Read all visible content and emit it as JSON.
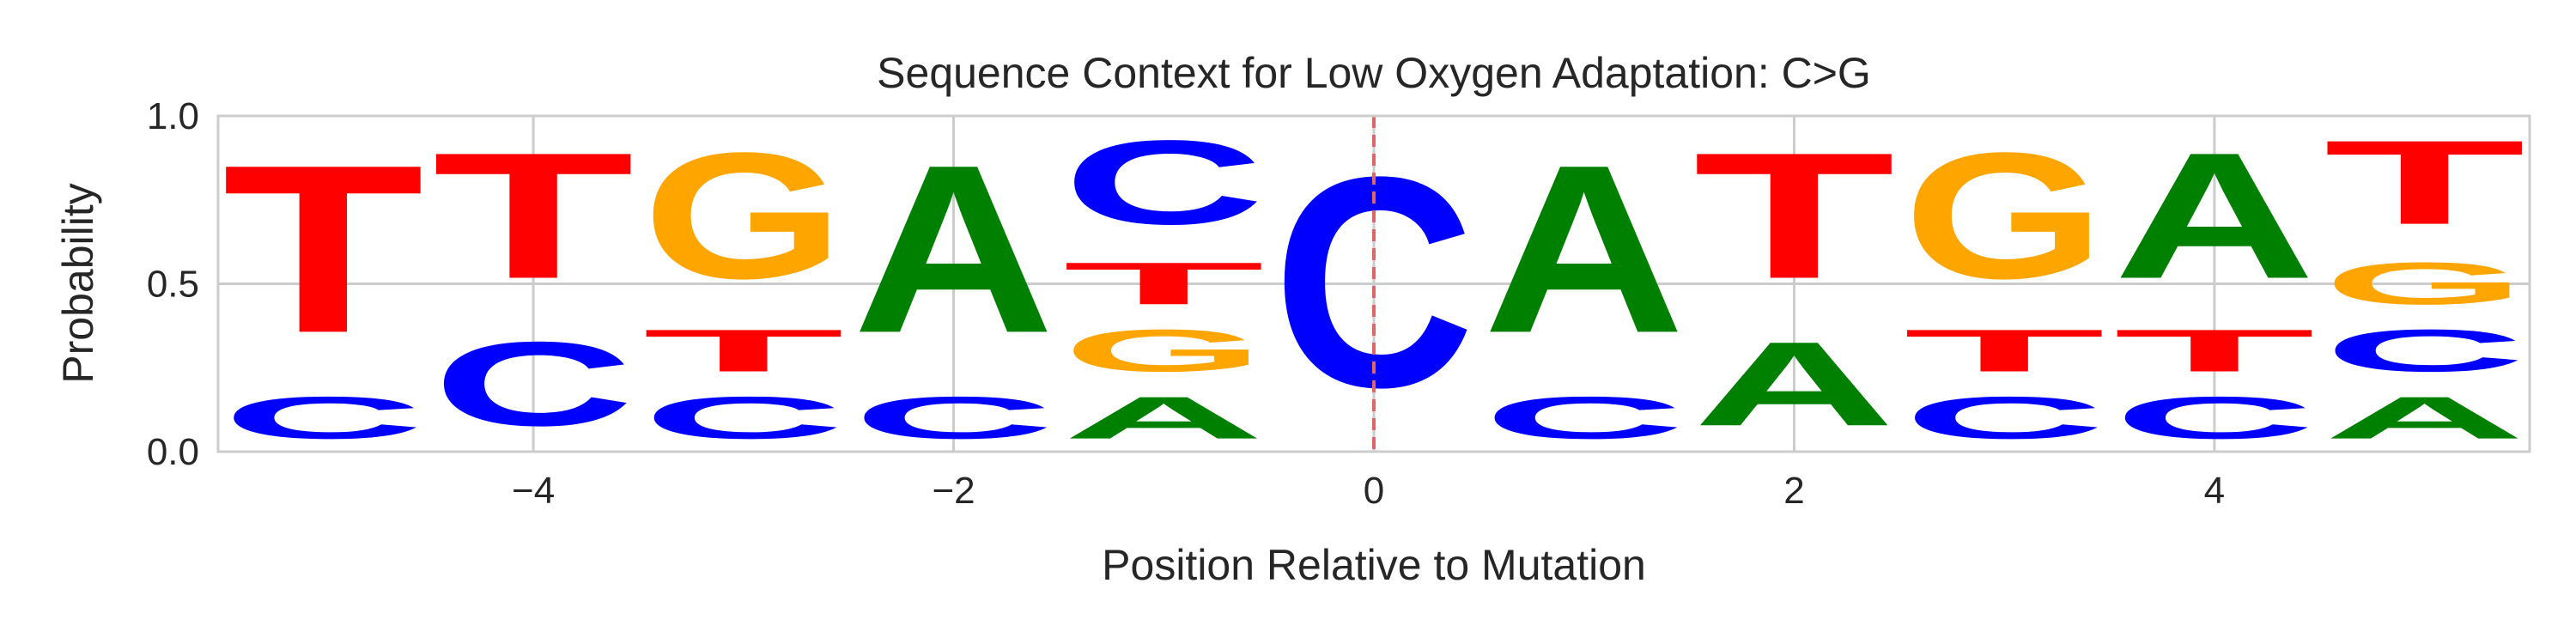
{
  "chart_data": {
    "type": "sequence-logo",
    "title": "Sequence Context for Low Oxygen Adaptation: C>G",
    "xlabel": "Position Relative to Mutation",
    "ylabel": "Probability",
    "xlim": [
      -5.5,
      5.5
    ],
    "ylim": [
      0.0,
      1.0
    ],
    "xticks": [
      -4,
      -2,
      0,
      2,
      4
    ],
    "xtick_labels": [
      "−4",
      "−2",
      "0",
      "2",
      "4"
    ],
    "yticks": [
      0.0,
      0.5,
      1.0
    ],
    "ytick_labels": [
      "0.0",
      "0.5",
      "1.0"
    ],
    "grid": true,
    "mutation_line": {
      "x": 0,
      "style": "dashed"
    },
    "colors": {
      "A": "#008000",
      "C": "#0000ff",
      "G": "#ffa500",
      "T": "#ff0000",
      "grid": "#cccccc",
      "frame": "#cccccc",
      "mutation_line": "#e06666"
    },
    "positions": [
      {
        "position": -5,
        "letters": [
          {
            "base": "C",
            "value": 0.2
          },
          {
            "base": "T",
            "value": 0.8
          }
        ]
      },
      {
        "position": -4,
        "letters": [
          {
            "base": "C",
            "value": 0.4
          },
          {
            "base": "T",
            "value": 0.6
          }
        ]
      },
      {
        "position": -3,
        "letters": [
          {
            "base": "C",
            "value": 0.2
          },
          {
            "base": "T",
            "value": 0.2
          },
          {
            "base": "G",
            "value": 0.6
          }
        ]
      },
      {
        "position": -2,
        "letters": [
          {
            "base": "C",
            "value": 0.2
          },
          {
            "base": "A",
            "value": 0.8
          }
        ]
      },
      {
        "position": -1,
        "letters": [
          {
            "base": "A",
            "value": 0.2
          },
          {
            "base": "G",
            "value": 0.2
          },
          {
            "base": "T",
            "value": 0.2
          },
          {
            "base": "C",
            "value": 0.4
          }
        ]
      },
      {
        "position": 0,
        "letters": [
          {
            "base": "C",
            "value": 1.0
          }
        ]
      },
      {
        "position": 1,
        "letters": [
          {
            "base": "C",
            "value": 0.2
          },
          {
            "base": "A",
            "value": 0.8
          }
        ]
      },
      {
        "position": 2,
        "letters": [
          {
            "base": "A",
            "value": 0.4
          },
          {
            "base": "T",
            "value": 0.6
          }
        ]
      },
      {
        "position": 3,
        "letters": [
          {
            "base": "C",
            "value": 0.2
          },
          {
            "base": "T",
            "value": 0.2
          },
          {
            "base": "G",
            "value": 0.6
          }
        ]
      },
      {
        "position": 4,
        "letters": [
          {
            "base": "C",
            "value": 0.2
          },
          {
            "base": "T",
            "value": 0.2
          },
          {
            "base": "A",
            "value": 0.6
          }
        ]
      },
      {
        "position": 5,
        "letters": [
          {
            "base": "A",
            "value": 0.2
          },
          {
            "base": "C",
            "value": 0.2
          },
          {
            "base": "G",
            "value": 0.2
          },
          {
            "base": "T",
            "value": 0.4
          }
        ]
      }
    ]
  }
}
